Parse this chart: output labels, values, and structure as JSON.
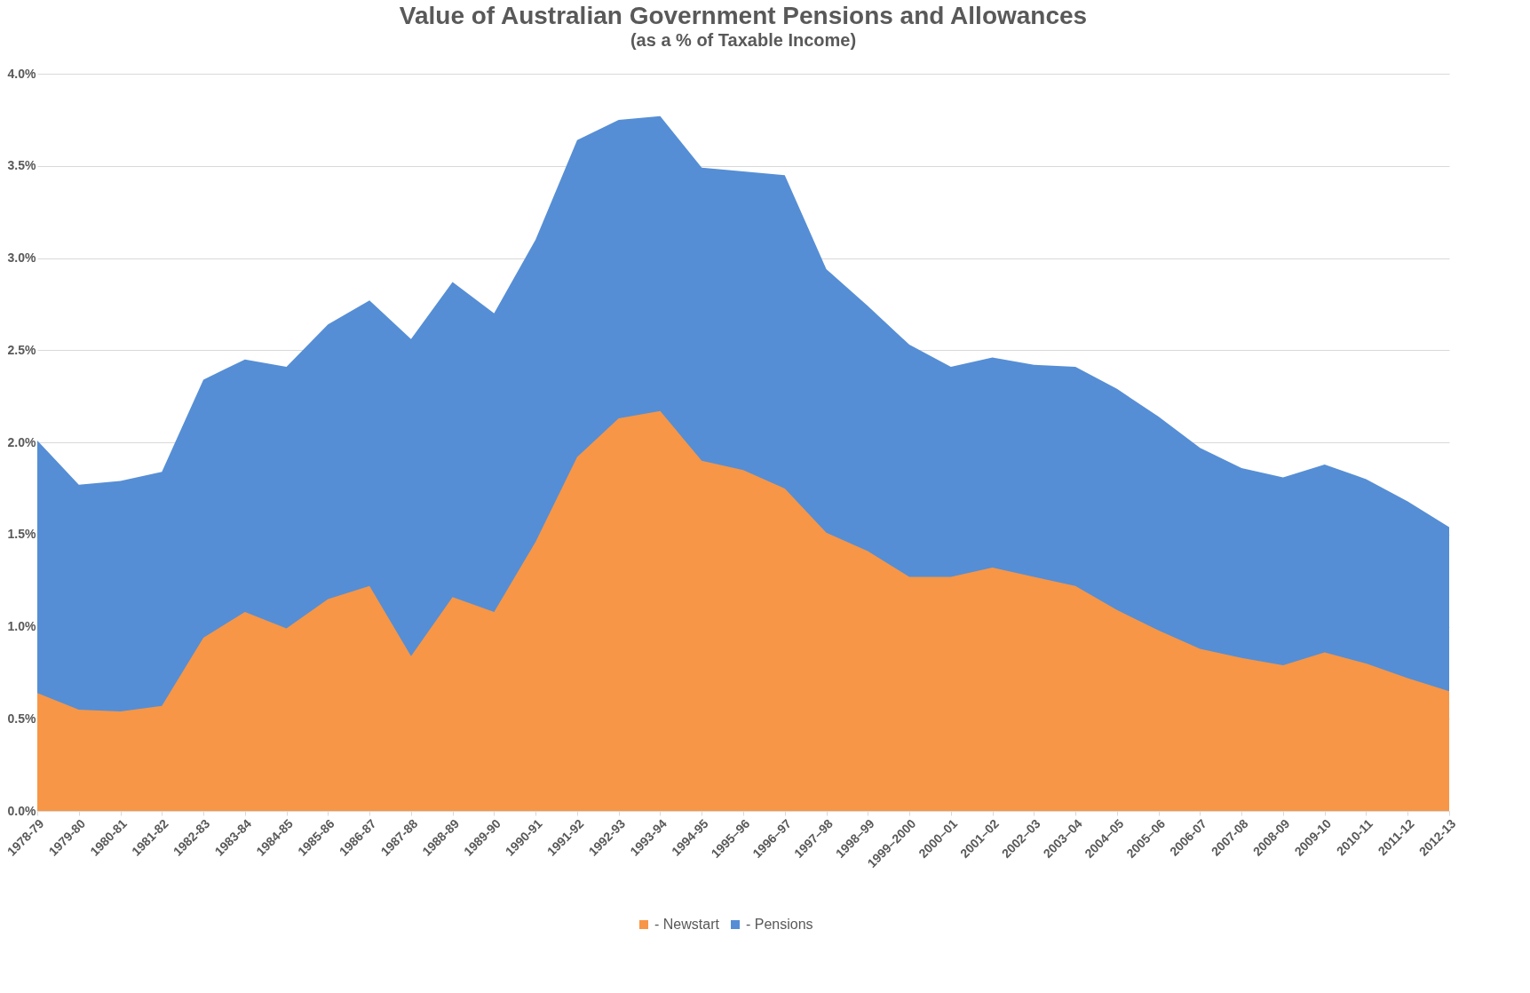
{
  "chart_data": {
    "type": "area",
    "title": "Value of Australian Government Pensions and Allowances",
    "subtitle": "(as a % of Taxable Income)",
    "categories": [
      "1978-79",
      "1979-80",
      "1980-81",
      "1981-82",
      "1982-83",
      "1983-84",
      "1984-85",
      "1985-86",
      "1986-87",
      "1987-88",
      "1988-89",
      "1989-90",
      "1990-91",
      "1991-92",
      "1992-93",
      "1993-94",
      "1994-95",
      "1995–96",
      "1996–97",
      "1997–98",
      "1998–99",
      "1999–2000",
      "2000–01",
      "2001–02",
      "2002–03",
      "2003–04",
      "2004–05",
      "2005–06",
      "2006-07",
      "2007-08",
      "2008-09",
      "2009-10",
      "2010-11",
      "2011-12",
      "2012-13"
    ],
    "series": [
      {
        "name": "- Pensions",
        "color": "#558ed5",
        "values": [
          2.01,
          1.77,
          1.79,
          1.84,
          2.34,
          2.45,
          2.41,
          2.64,
          2.77,
          2.56,
          2.87,
          2.7,
          3.1,
          3.64,
          3.75,
          3.77,
          3.49,
          3.47,
          3.45,
          2.94,
          2.74,
          2.53,
          2.41,
          2.46,
          2.42,
          2.41,
          2.29,
          2.14,
          1.97,
          1.86,
          1.81,
          1.88,
          1.8,
          1.68,
          1.54
        ]
      },
      {
        "name": "- Newstart",
        "color": "#f79646",
        "values": [
          0.64,
          0.55,
          0.54,
          0.57,
          0.94,
          1.08,
          0.99,
          1.15,
          1.22,
          0.84,
          1.16,
          1.08,
          1.46,
          1.92,
          2.13,
          2.17,
          1.9,
          1.85,
          1.75,
          1.51,
          1.41,
          1.27,
          1.27,
          1.32,
          1.27,
          1.22,
          1.09,
          0.98,
          0.88,
          0.83,
          0.79,
          0.86,
          0.8,
          0.72,
          0.65
        ]
      }
    ],
    "ylim": [
      0,
      4
    ],
    "yticks": [
      {
        "value": 0,
        "label": "0.0%"
      },
      {
        "value": 0.5,
        "label": "0.5%"
      },
      {
        "value": 1,
        "label": "1.0%"
      },
      {
        "value": 1.5,
        "label": "1.5%"
      },
      {
        "value": 2,
        "label": "2.0%"
      },
      {
        "value": 2.5,
        "label": "2.5%"
      },
      {
        "value": 3,
        "label": "3.0%"
      },
      {
        "value": 3.5,
        "label": "3.5%"
      },
      {
        "value": 4,
        "label": "4.0%"
      }
    ],
    "grid": "y",
    "legend": "bottom"
  }
}
